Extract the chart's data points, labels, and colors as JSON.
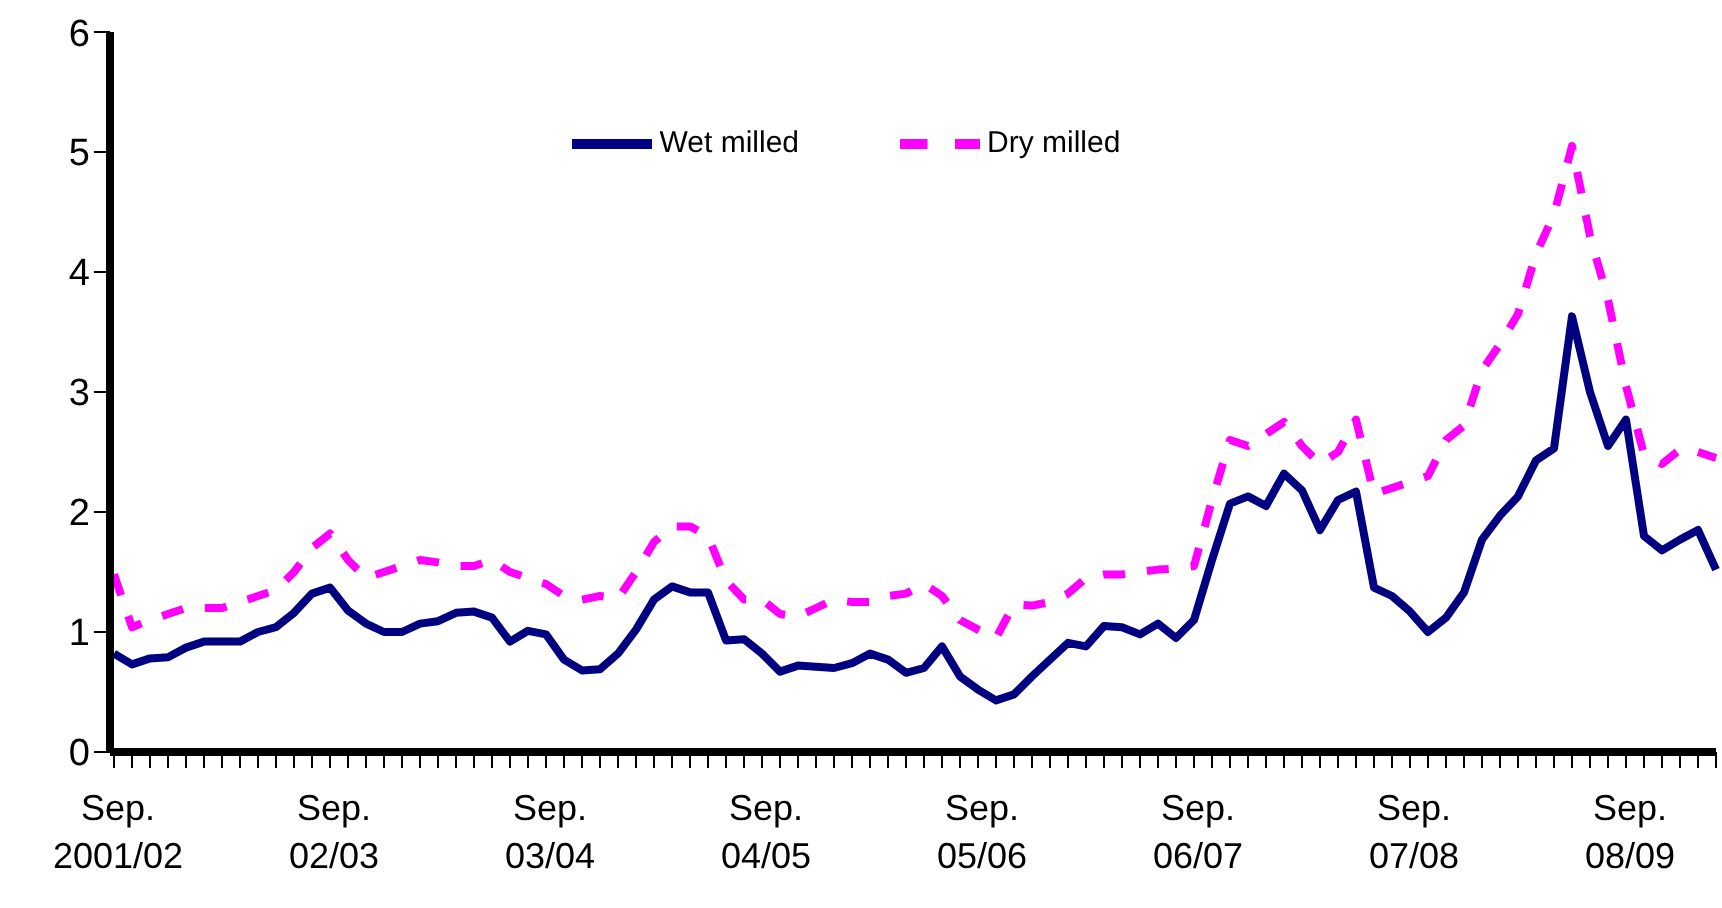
{
  "chart_data": {
    "type": "line",
    "categories": [
      "Sep. 2001/02",
      null,
      null,
      null,
      null,
      null,
      null,
      null,
      null,
      null,
      null,
      null,
      "Sep. 02/03",
      null,
      null,
      null,
      null,
      null,
      null,
      null,
      null,
      null,
      null,
      null,
      "Sep. 03/04",
      null,
      null,
      null,
      null,
      null,
      null,
      null,
      null,
      null,
      null,
      null,
      "Sep. 04/05",
      null,
      null,
      null,
      null,
      null,
      null,
      null,
      null,
      null,
      null,
      null,
      "Sep. 05/06",
      null,
      null,
      null,
      null,
      null,
      null,
      null,
      null,
      null,
      null,
      null,
      "Sep. 06/07",
      null,
      null,
      null,
      null,
      null,
      null,
      null,
      null,
      null,
      null,
      null,
      "Sep. 07/08",
      null,
      null,
      null,
      null,
      null,
      null,
      null,
      null,
      null,
      null,
      null,
      "Sep. 08/09",
      null,
      null,
      null,
      null,
      null
    ],
    "series": [
      {
        "name": "Wet milled",
        "color": "#000080",
        "line_style": "solid",
        "values": [
          0.82,
          0.73,
          0.78,
          0.79,
          0.87,
          0.92,
          0.92,
          0.92,
          1.0,
          1.04,
          1.16,
          1.32,
          1.37,
          1.18,
          1.07,
          1.0,
          1.0,
          1.07,
          1.09,
          1.16,
          1.17,
          1.12,
          0.92,
          1.01,
          0.98,
          0.77,
          0.68,
          0.69,
          0.82,
          1.02,
          1.27,
          1.38,
          1.33,
          1.33,
          0.93,
          0.94,
          0.82,
          0.67,
          0.72,
          0.71,
          0.7,
          0.74,
          0.82,
          0.77,
          0.66,
          0.7,
          0.88,
          0.63,
          0.52,
          0.43,
          0.48,
          0.63,
          0.77,
          0.91,
          0.88,
          1.05,
          1.04,
          0.98,
          1.07,
          0.95,
          1.1,
          1.6,
          2.07,
          2.13,
          2.05,
          2.32,
          2.18,
          1.85,
          2.1,
          2.17,
          1.37,
          1.3,
          1.17,
          1.0,
          1.12,
          1.33,
          1.77,
          1.97,
          2.13,
          2.43,
          2.53,
          3.63,
          3.0,
          2.55,
          2.77,
          1.8,
          1.68,
          1.77,
          1.85,
          1.52
        ]
      },
      {
        "name": "Dry milled",
        "color": "#ff00ff",
        "line_style": "dashed",
        "values": [
          1.48,
          1.04,
          1.1,
          1.15,
          1.2,
          1.2,
          1.2,
          1.25,
          1.3,
          1.35,
          1.5,
          1.7,
          1.82,
          1.6,
          1.45,
          1.5,
          1.55,
          1.6,
          1.58,
          1.55,
          1.55,
          1.6,
          1.5,
          1.45,
          1.4,
          1.3,
          1.27,
          1.3,
          1.28,
          1.5,
          1.75,
          1.88,
          1.88,
          1.8,
          1.43,
          1.27,
          1.27,
          1.15,
          1.13,
          1.2,
          1.27,
          1.25,
          1.25,
          1.3,
          1.32,
          1.4,
          1.3,
          1.1,
          1.02,
          0.95,
          1.23,
          1.22,
          1.25,
          1.32,
          1.45,
          1.48,
          1.48,
          1.5,
          1.52,
          1.53,
          1.55,
          2.1,
          2.6,
          2.55,
          2.65,
          2.75,
          2.55,
          2.4,
          2.5,
          2.77,
          2.15,
          2.2,
          2.25,
          2.3,
          2.6,
          2.72,
          3.18,
          3.4,
          3.65,
          4.15,
          4.48,
          5.05,
          4.3,
          3.77,
          3.05,
          2.48,
          2.4,
          2.52,
          2.5,
          2.45
        ]
      }
    ],
    "ylim": [
      0,
      6
    ],
    "yticks": [
      0,
      1,
      2,
      3,
      4,
      5,
      6
    ],
    "grid": false,
    "legend": "top",
    "marker": "none"
  }
}
